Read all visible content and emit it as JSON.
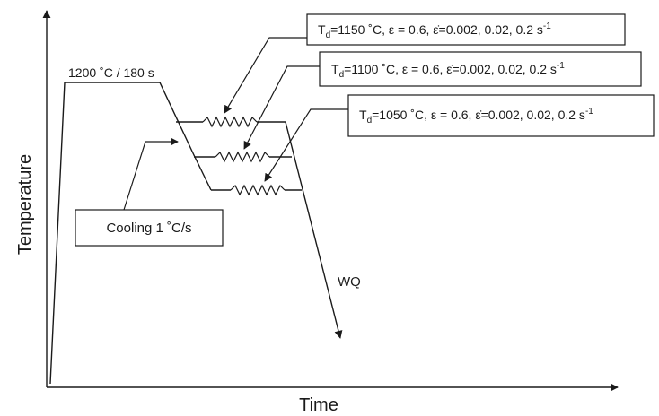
{
  "axes": {
    "x_label": "Time",
    "y_label": "Temperature"
  },
  "soak_label": "1200 ˚C  /  180 s",
  "cooling_label": "Cooling 1 ˚C/s",
  "quench_label": "WQ",
  "deformation_conditions": [
    {
      "td_symbol": "T",
      "td_sub": "d",
      "condition": "=1150 ˚C, ε = 0.6, ε̇=0.002, 0.02, 0.2 s",
      "unit_sup": "-1"
    },
    {
      "td_symbol": "T",
      "td_sub": "d",
      "condition": "=1100 ˚C, ε = 0.6, ε̇=0.002, 0.02, 0.2 s",
      "unit_sup": "-1"
    },
    {
      "td_symbol": "T",
      "td_sub": "d",
      "condition": "=1050 ˚C, ε = 0.6, ε̇=0.002, 0.02, 0.2 s",
      "unit_sup": "-1"
    }
  ],
  "colors": {
    "ink": "#1a1a1a",
    "background": "#ffffff"
  }
}
